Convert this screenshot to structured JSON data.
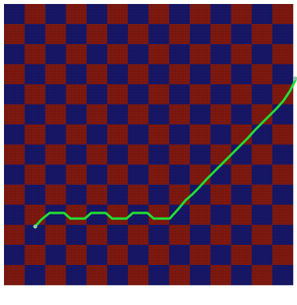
{
  "board": {
    "columns": 14,
    "rows": 14,
    "colors": {
      "dark_cell": "#1a1a72",
      "dark_cell_mesh": "#000033",
      "light_cell": "#8a1c12",
      "light_cell_mesh": "#330000",
      "frame": "#ffffff",
      "path": "#22dd33",
      "path_dot": "#88ccaa"
    }
  }
}
